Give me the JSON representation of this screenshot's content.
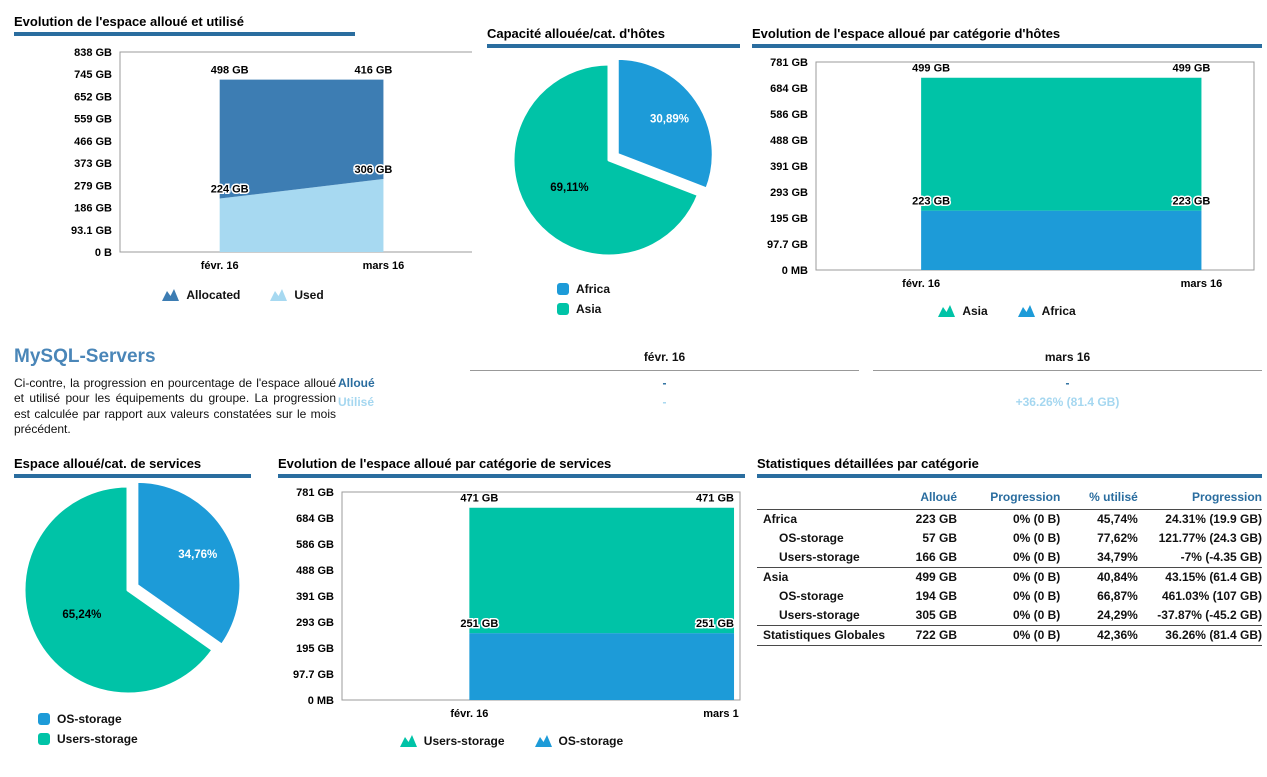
{
  "colors": {
    "accent_bar": "#2a6d9f",
    "bright_blue": "#1d9bd8",
    "teal": "#00c3a7",
    "steel_area": "#3d7db3",
    "light_area": "#a7d9f1",
    "heading_blue": "#4a86b8"
  },
  "summary": {
    "heading": "MySQL-Servers",
    "description": "Ci-contre, la progression en pourcentage de l'espace alloué et utilisé pour les équipements du groupe. La progression est calculée par rapport aux valeurs constatées sur le mois précédent."
  },
  "chart_data": [
    {
      "id": "alloc_used",
      "type": "area",
      "stacked": true,
      "title": "Evolution de l'espace alloué et utilisé",
      "categories": [
        "févr. 16",
        "mars 16"
      ],
      "ylim": [
        0,
        838
      ],
      "yticks": [
        "838 GB",
        "745 GB",
        "652 GB",
        "559 GB",
        "466 GB",
        "373 GB",
        "279 GB",
        "186 GB",
        "93.1 GB",
        "0 B"
      ],
      "series": [
        {
          "name": "Used",
          "values": [
            224,
            306
          ],
          "labels": [
            "224 GB",
            "306 GB"
          ],
          "color": "#a7d9f1"
        },
        {
          "name": "Allocated",
          "values": [
            498,
            416
          ],
          "labels": [
            "498 GB",
            "416 GB"
          ],
          "color": "#3d7db3"
        }
      ],
      "legend": [
        {
          "label": "Allocated",
          "color": "#3d7db3"
        },
        {
          "label": "Used",
          "color": "#a7d9f1"
        }
      ]
    },
    {
      "id": "hosts_pie",
      "type": "pie",
      "title": "Capacité allouée/cat. d'hôtes",
      "slices": [
        {
          "name": "Africa",
          "pct": 30.89,
          "label": "30,89%",
          "color": "#1d9bd8",
          "label_color": "#ffffff",
          "offset": true
        },
        {
          "name": "Asia",
          "pct": 69.11,
          "label": "69,11%",
          "color": "#00c3a7",
          "label_color": "#000000",
          "offset": false
        }
      ],
      "legend": [
        {
          "label": "Africa",
          "color": "#1d9bd8"
        },
        {
          "label": "Asia",
          "color": "#00c3a7"
        }
      ]
    },
    {
      "id": "hosts_area",
      "type": "area",
      "stacked": true,
      "title": "Evolution de l'espace alloué par catégorie d'hôtes",
      "categories": [
        "févr. 16",
        "mars 16"
      ],
      "ylim": [
        0,
        781
      ],
      "yticks": [
        "781 GB",
        "684 GB",
        "586 GB",
        "488 GB",
        "391 GB",
        "293 GB",
        "195 GB",
        "97.7 GB",
        "0 MB"
      ],
      "series": [
        {
          "name": "Africa",
          "values": [
            223,
            223
          ],
          "labels": [
            "223 GB",
            "223 GB"
          ],
          "color": "#1d9bd8"
        },
        {
          "name": "Asia",
          "values": [
            499,
            499
          ],
          "labels": [
            "499 GB",
            "499 GB"
          ],
          "color": "#00c3a7"
        }
      ],
      "legend": [
        {
          "label": "Asia",
          "color": "#00c3a7"
        },
        {
          "label": "Africa",
          "color": "#1d9bd8"
        }
      ]
    },
    {
      "id": "services_pie",
      "type": "pie",
      "title": "Espace alloué/cat. de services",
      "slices": [
        {
          "name": "OS-storage",
          "pct": 34.76,
          "label": "34,76%",
          "color": "#1d9bd8",
          "label_color": "#ffffff",
          "offset": true
        },
        {
          "name": "Users-storage",
          "pct": 65.24,
          "label": "65,24%",
          "color": "#00c3a7",
          "label_color": "#000000",
          "offset": false
        }
      ],
      "legend": [
        {
          "label": "OS-storage",
          "color": "#1d9bd8"
        },
        {
          "label": "Users-storage",
          "color": "#00c3a7"
        }
      ]
    },
    {
      "id": "services_area",
      "type": "area",
      "stacked": true,
      "title": "Evolution de l'espace alloué par catégorie de services",
      "categories": [
        "févr. 16",
        "mars 1"
      ],
      "ylim": [
        0,
        781
      ],
      "yticks": [
        "781 GB",
        "684 GB",
        "586 GB",
        "488 GB",
        "391 GB",
        "293 GB",
        "195 GB",
        "97.7 GB",
        "0 MB"
      ],
      "series": [
        {
          "name": "OS-storage",
          "values": [
            251,
            251
          ],
          "labels": [
            "251 GB",
            "251 GB"
          ],
          "color": "#1d9bd8"
        },
        {
          "name": "Users-storage",
          "values": [
            471,
            471
          ],
          "labels": [
            "471 GB",
            "471 GB"
          ],
          "color": "#00c3a7"
        }
      ],
      "legend": [
        {
          "label": "Users-storage",
          "color": "#00c3a7"
        },
        {
          "label": "OS-storage",
          "color": "#1d9bd8"
        }
      ]
    },
    {
      "id": "summary_table",
      "type": "table",
      "columns": [
        "févr. 16",
        "mars 16"
      ],
      "rows": [
        {
          "label": "Alloué",
          "label_color": "#2a6d9f",
          "values": [
            "-",
            "-"
          ]
        },
        {
          "label": "Utilisé",
          "label_color": "#a5d7f0",
          "values": [
            "-",
            "+36.26% (81.4 GB)"
          ]
        }
      ]
    },
    {
      "id": "stats_table",
      "type": "table",
      "title": "Statistiques détaillées par catégorie",
      "headers": [
        "",
        "Alloué",
        "Progression",
        "% utilisé",
        "Progression"
      ],
      "rows": [
        {
          "label": "Africa",
          "level": 0,
          "cells": [
            "223 GB",
            "0% (0 B)",
            "45,74%",
            "24.31% (19.9 GB)"
          ]
        },
        {
          "label": "OS-storage",
          "level": 1,
          "cells": [
            "57 GB",
            "0% (0 B)",
            "77,62%",
            "121.77% (24.3 GB)"
          ]
        },
        {
          "label": "Users-storage",
          "level": 1,
          "cells": [
            "166 GB",
            "0% (0 B)",
            "34,79%",
            "-7% (-4.35 GB)"
          ]
        },
        {
          "label": "Asia",
          "level": 0,
          "cells": [
            "499 GB",
            "0% (0 B)",
            "40,84%",
            "43.15% (61.4 GB)"
          ]
        },
        {
          "label": "OS-storage",
          "level": 1,
          "cells": [
            "194 GB",
            "0% (0 B)",
            "66,87%",
            "461.03% (107 GB)"
          ]
        },
        {
          "label": "Users-storage",
          "level": 1,
          "cells": [
            "305 GB",
            "0% (0 B)",
            "24,29%",
            "-37.87% (-45.2 GB)"
          ]
        },
        {
          "label": "Statistiques Globales",
          "level": 0,
          "total": true,
          "cells": [
            "722 GB",
            "0% (0 B)",
            "42,36%",
            "36.26% (81.4 GB)"
          ]
        }
      ]
    }
  ]
}
